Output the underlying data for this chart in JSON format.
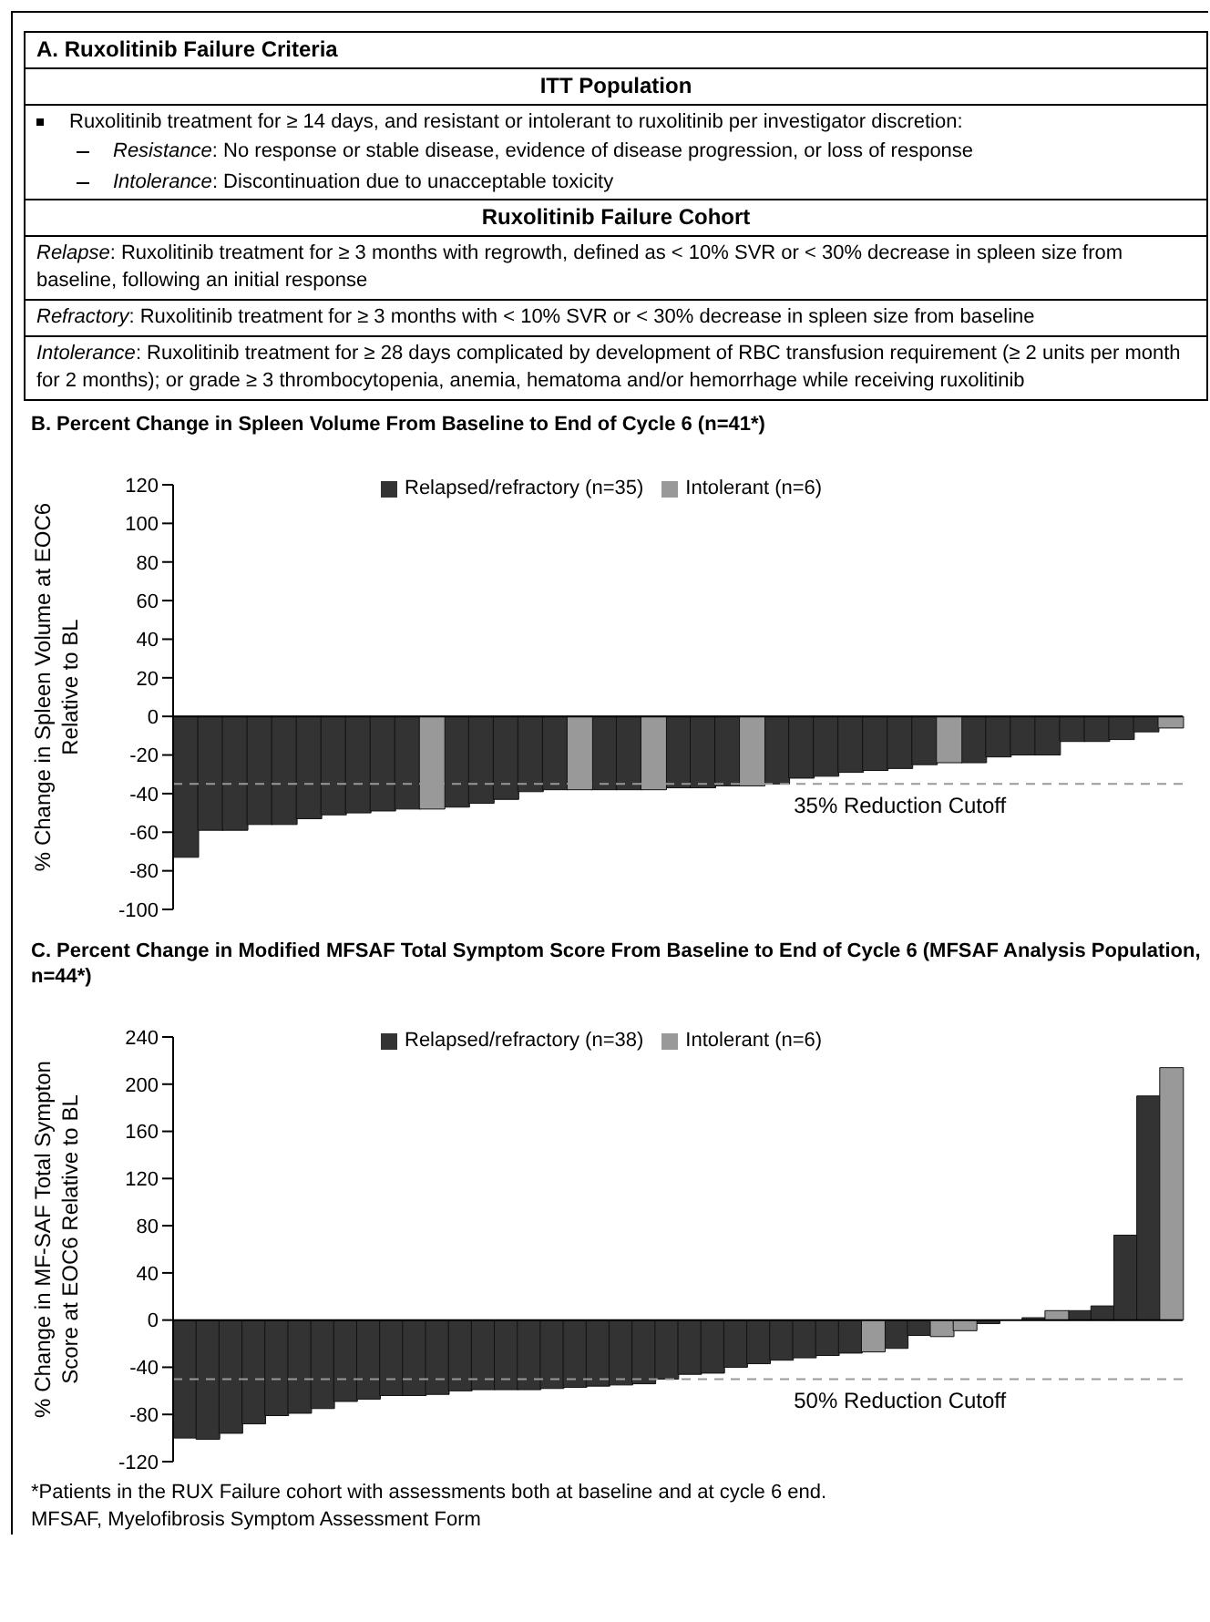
{
  "chart_data": [
    {
      "type": "other",
      "title": "A. Ruxolitinib Failure Criteria",
      "annotations": [
        "ITT Population",
        "Ruxolitinib treatment for ≥ 14 days, and resistant or intolerant to ruxolitinib per investigator discretion:",
        "Resistance: No response or stable disease, evidence of disease progression, or loss of response",
        "Intolerance: Discontinuation due to unacceptable toxicity",
        "Ruxolitinib Failure Cohort",
        "Relapse: Ruxolitinib treatment for ≥ 3 months with regrowth, defined as < 10% SVR or < 30% decrease in spleen size from baseline, following an initial response",
        "Refractory: Ruxolitinib treatment for ≥ 3 months with < 10% SVR or < 30% decrease in spleen size from baseline",
        "Intolerance: Ruxolitinib treatment for ≥ 28 days complicated by development of RBC transfusion requirement (≥ 2 units per month for 2 months); or grade ≥ 3 thrombocytopenia, anemia, hematoma and/or hemorrhage while receiving ruxolitinib"
      ]
    },
    {
      "type": "bar",
      "title": "B. Percent Change in Spleen Volume From Baseline to End of Cycle 6 (n=41*)",
      "ylabel": "% Change in Spleen Volume at EOC6 Relative to BL",
      "stacked": true,
      "tick_labels": "y",
      "legend": "top",
      "ylim": [
        -100,
        120
      ],
      "yticks": [
        -100,
        -80,
        -60,
        -40,
        -20,
        0,
        20,
        40,
        60,
        80,
        100,
        120
      ],
      "categories": [
        null,
        null,
        null,
        null,
        null,
        null,
        null,
        null,
        null,
        null,
        null,
        null,
        null,
        null,
        null,
        null,
        null,
        null,
        null,
        null,
        null,
        null,
        null,
        null,
        null,
        null,
        null,
        null,
        null,
        null,
        null,
        null,
        null,
        null,
        null,
        null,
        null,
        null,
        null,
        null,
        null
      ],
      "series": [
        {
          "name": "Relapsed/refractory (n=35)",
          "color": "#333333",
          "values": [
            -73,
            -59,
            -59,
            -56,
            -56,
            -53,
            -51,
            -50,
            -49,
            -48,
            null,
            -47,
            -45,
            -43,
            -39,
            -38,
            null,
            -38,
            -38,
            null,
            -37,
            -37,
            -36,
            null,
            -35,
            -32,
            -31,
            -29,
            -28,
            -27,
            -25,
            null,
            -24,
            -21,
            -20,
            -20,
            -13,
            -13,
            -12,
            -8,
            null
          ]
        },
        {
          "name": "Intolerant (n=6)",
          "color": "#999999",
          "values": [
            null,
            null,
            null,
            null,
            null,
            null,
            null,
            null,
            null,
            null,
            -48,
            null,
            null,
            null,
            null,
            null,
            -38,
            null,
            null,
            -38,
            null,
            null,
            null,
            -36,
            null,
            null,
            null,
            null,
            null,
            null,
            null,
            -24,
            null,
            null,
            null,
            null,
            null,
            null,
            null,
            null,
            -6
          ]
        }
      ],
      "ref_lines": [
        {
          "axis": "y",
          "value": -35,
          "label": "35% Reduction Cutoff",
          "color": "#999999",
          "line_style": "dashed"
        }
      ]
    },
    {
      "type": "bar",
      "title": "C. Percent Change in Modified MFSAF Total Symptom Score From Baseline to End of Cycle 6  (MFSAF Analysis Population, n=44*)",
      "ylabel": "% Change in MF-SAF Total Sympton Score at EOC6 Relative to BL",
      "stacked": true,
      "tick_labels": "y",
      "legend": "top",
      "ylim": [
        -120,
        240
      ],
      "yticks": [
        -120,
        -80,
        -40,
        0,
        40,
        80,
        120,
        160,
        200,
        240
      ],
      "categories": [
        null,
        null,
        null,
        null,
        null,
        null,
        null,
        null,
        null,
        null,
        null,
        null,
        null,
        null,
        null,
        null,
        null,
        null,
        null,
        null,
        null,
        null,
        null,
        null,
        null,
        null,
        null,
        null,
        null,
        null,
        null,
        null,
        null,
        null,
        null,
        null,
        null,
        null,
        null,
        null,
        null,
        null,
        null,
        null
      ],
      "series": [
        {
          "name": "Relapsed/refractory (n=38)",
          "color": "#333333",
          "values": [
            -100,
            -101,
            -96,
            -88,
            -81,
            -79,
            -75,
            -69,
            -67,
            -64,
            -64,
            -63,
            -60,
            -59,
            -59,
            -59,
            -58,
            -57,
            -56,
            -55,
            -54,
            -50,
            -46,
            -45,
            -40,
            -37,
            -34,
            -32,
            -30,
            -28,
            null,
            -24,
            -13,
            null,
            null,
            -3,
            null,
            2,
            null,
            8,
            12,
            72,
            190,
            null
          ]
        },
        {
          "name": "Intolerant (n=6)",
          "color": "#999999",
          "values": [
            null,
            null,
            null,
            null,
            null,
            null,
            null,
            null,
            null,
            null,
            null,
            null,
            null,
            null,
            null,
            null,
            null,
            null,
            null,
            null,
            null,
            null,
            null,
            null,
            null,
            null,
            null,
            null,
            null,
            null,
            -27,
            null,
            null,
            -14,
            -9,
            null,
            null,
            null,
            8,
            null,
            null,
            null,
            null,
            214
          ]
        }
      ],
      "ref_lines": [
        {
          "axis": "y",
          "value": -50,
          "label": "50% Reduction Cutoff",
          "color": "#999999",
          "line_style": "dashed"
        }
      ],
      "annotations": [
        "*Patients in the RUX Failure cohort with assessments both at baseline and at cycle 6 end.",
        "MFSAF, Myelofibrosis Symptom Assessment Form"
      ]
    }
  ]
}
